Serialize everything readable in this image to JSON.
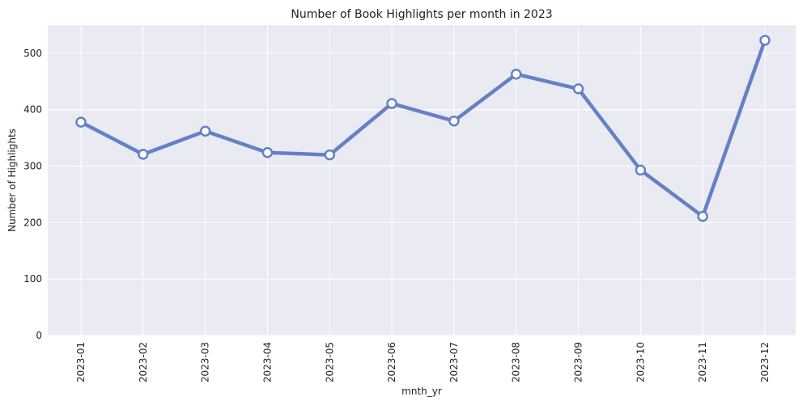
{
  "chart_data": {
    "type": "line",
    "title": "Number of Book Highlights per month in 2023",
    "xlabel": "mnth_yr",
    "ylabel": "Number of Highlights",
    "categories": [
      "2023-01",
      "2023-02",
      "2023-03",
      "2023-04",
      "2023-05",
      "2023-06",
      "2023-07",
      "2023-08",
      "2023-09",
      "2023-10",
      "2023-11",
      "2023-12"
    ],
    "series": [
      {
        "values": [
          378,
          321,
          362,
          324,
          320,
          411,
          380,
          463,
          437,
          293,
          211,
          523
        ]
      }
    ],
    "ylim": [
      0,
      550
    ],
    "yticks": [
      0,
      100,
      200,
      300,
      400,
      500
    ],
    "grid": true,
    "line_color": "#6581c4",
    "marker_face_color": "#ffffff",
    "plot_background": "#eaeaf2",
    "grid_color": "#ffffff"
  }
}
